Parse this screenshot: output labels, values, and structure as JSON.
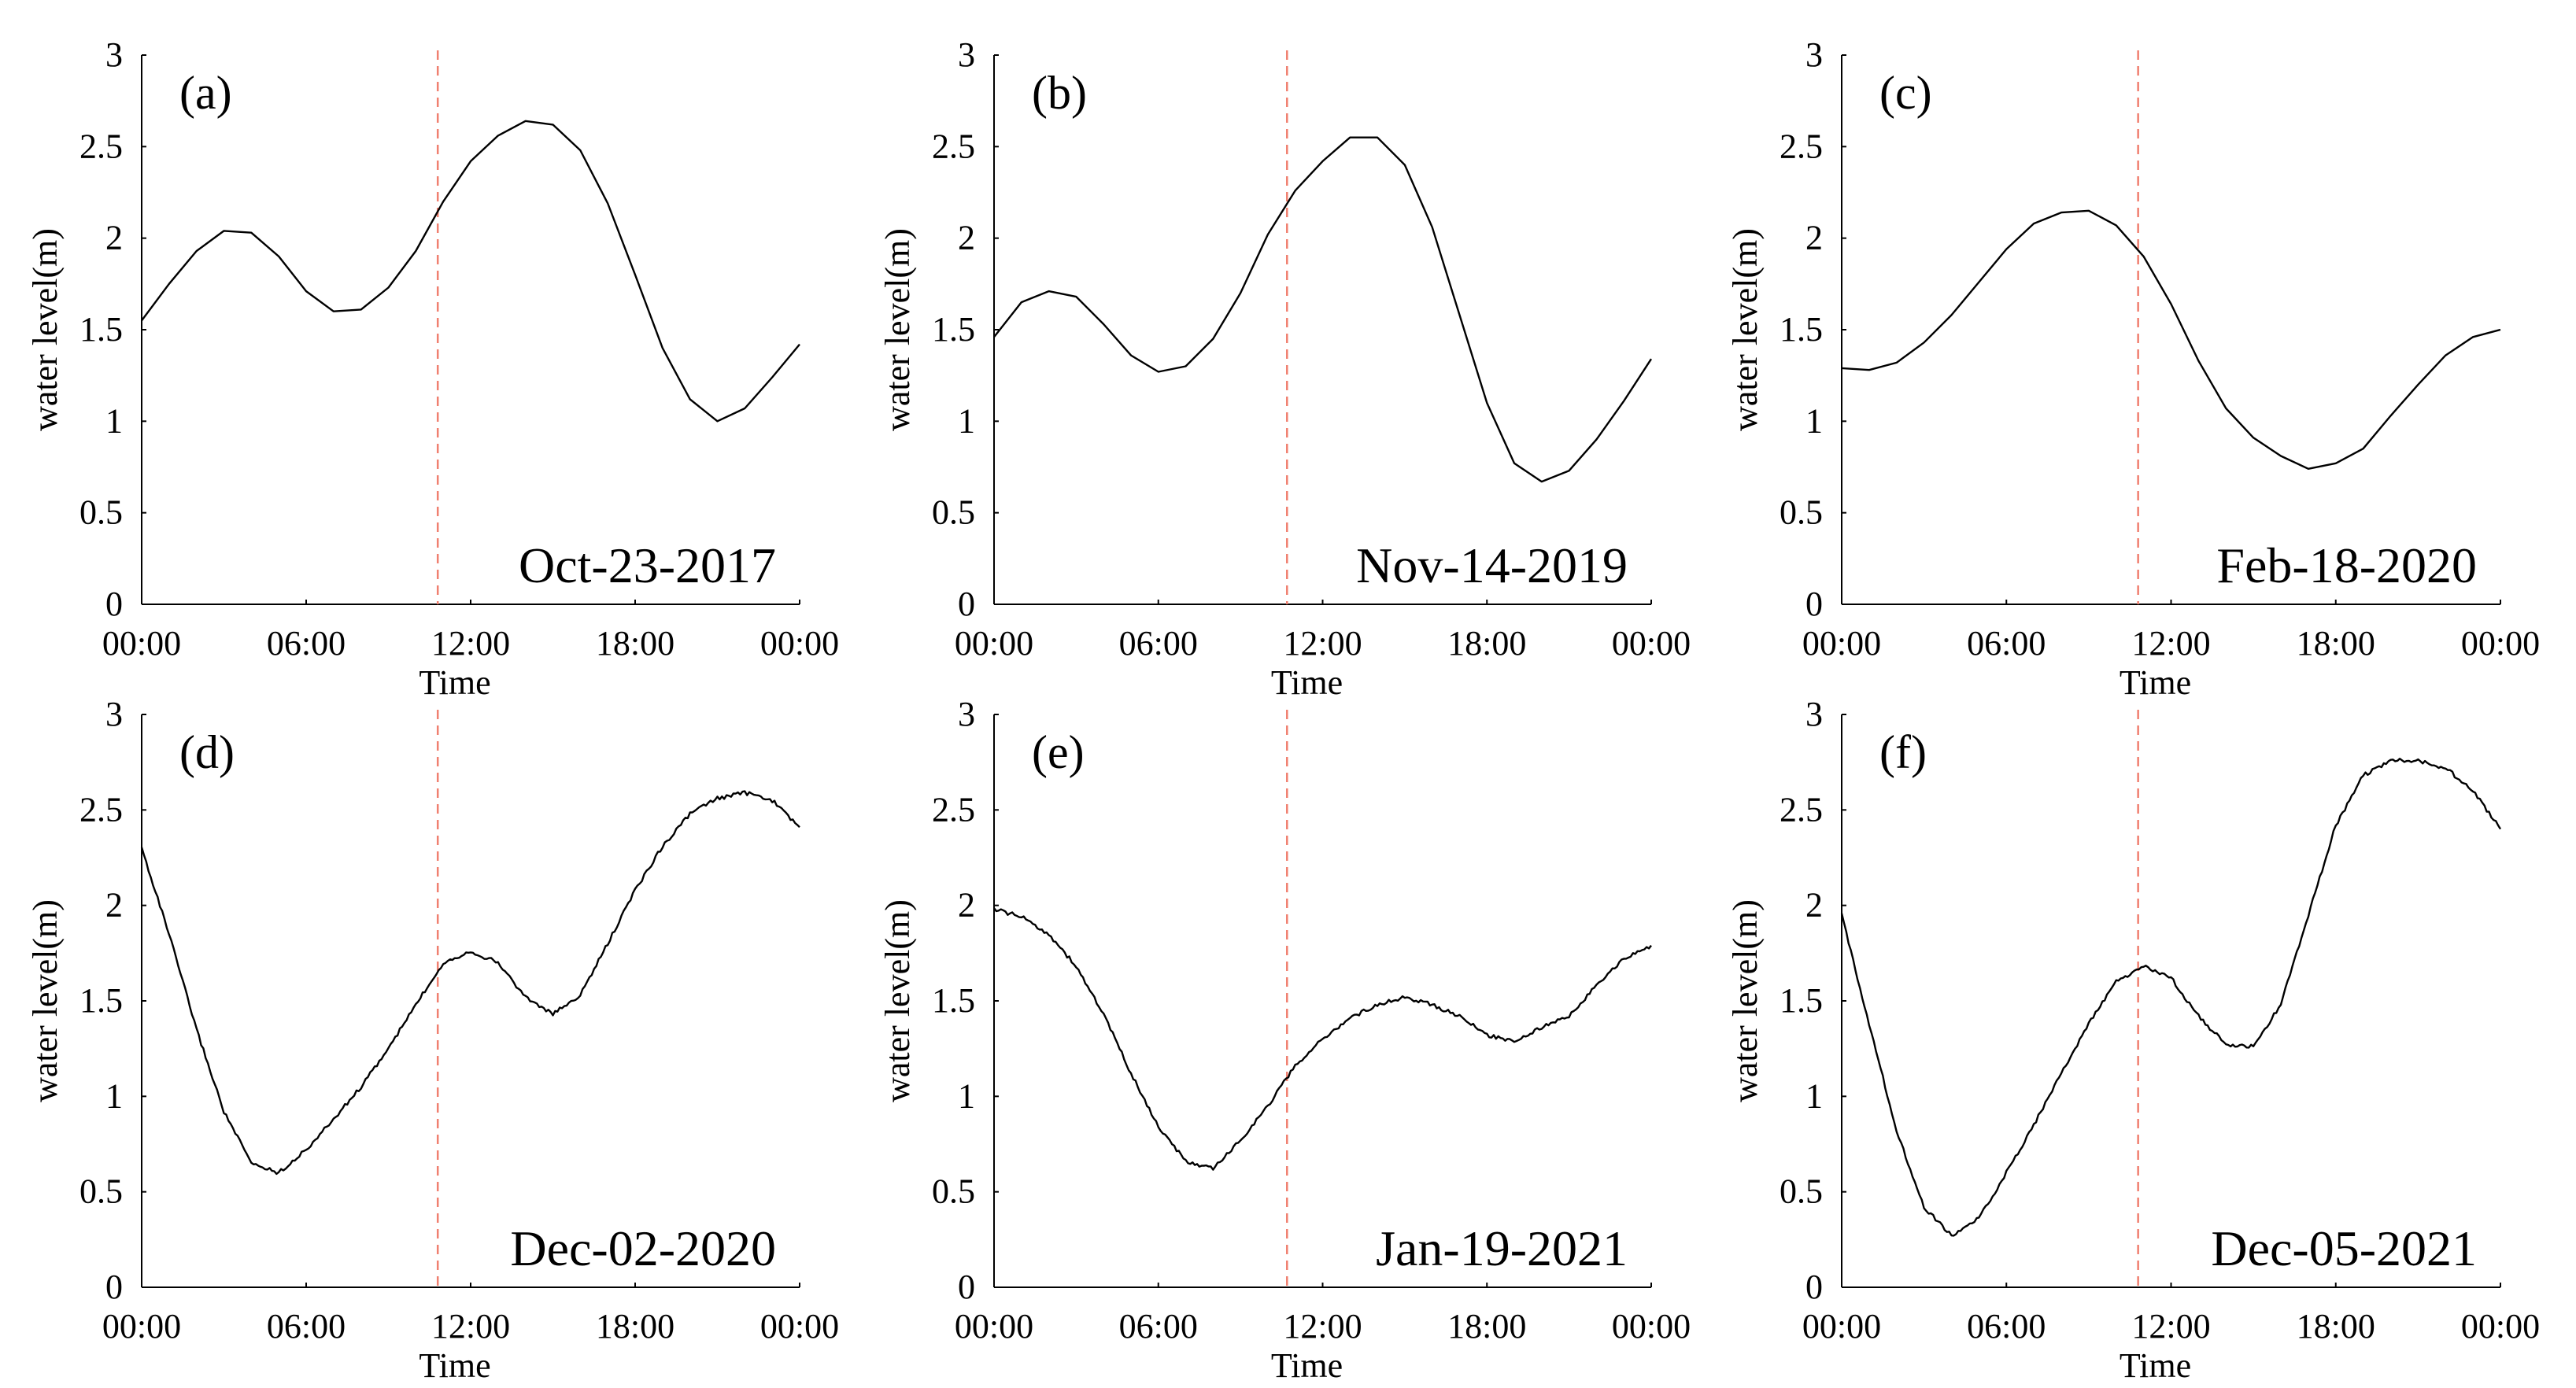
{
  "figure": {
    "colors": {
      "line": "#000000",
      "axis": "#000000",
      "marker": "#f08070",
      "background": "#ffffff"
    }
  },
  "chart_data": [
    {
      "type": "line",
      "panel_label": "(a)",
      "date_label": "Oct-23-2017",
      "xlabel": "Time",
      "ylabel": "water level(m)",
      "xlim": [
        0,
        24
      ],
      "ylim": [
        0,
        3
      ],
      "xticks": [
        0,
        6,
        12,
        18,
        24
      ],
      "xtick_labels": [
        "00:00",
        "06:00",
        "12:00",
        "18:00",
        "00:00"
      ],
      "yticks": [
        0,
        0.5,
        1,
        1.5,
        2,
        2.5,
        3
      ],
      "ytick_labels": [
        "0",
        "0.5",
        "1",
        "1.5",
        "2",
        "2.5",
        "3"
      ],
      "marker_hour": 10.8,
      "series": [
        {
          "name": "water level",
          "x": [
            0,
            1,
            2,
            3,
            4,
            5,
            6,
            7,
            8,
            9,
            10,
            11,
            12,
            13,
            14,
            15,
            16,
            17,
            18,
            19,
            20,
            21,
            22,
            23,
            24
          ],
          "values": [
            1.55,
            1.75,
            1.93,
            2.04,
            2.03,
            1.9,
            1.71,
            1.6,
            1.61,
            1.73,
            1.93,
            2.2,
            2.42,
            2.56,
            2.64,
            2.62,
            2.48,
            2.19,
            1.8,
            1.4,
            1.12,
            1.0,
            1.07,
            1.24,
            1.42
          ]
        }
      ]
    },
    {
      "type": "line",
      "panel_label": "(b)",
      "date_label": "Nov-14-2019",
      "xlabel": "Time",
      "ylabel": "water level(m)",
      "xlim": [
        0,
        24
      ],
      "ylim": [
        0,
        3
      ],
      "xticks": [
        0,
        6,
        12,
        18,
        24
      ],
      "xtick_labels": [
        "00:00",
        "06:00",
        "12:00",
        "18:00",
        "00:00"
      ],
      "yticks": [
        0,
        0.5,
        1,
        1.5,
        2,
        2.5,
        3
      ],
      "ytick_labels": [
        "0",
        "0.5",
        "1",
        "1.5",
        "2",
        "2.5",
        "3"
      ],
      "marker_hour": 10.7,
      "series": [
        {
          "name": "water level",
          "x": [
            0,
            1,
            2,
            3,
            4,
            5,
            6,
            7,
            8,
            9,
            10,
            11,
            12,
            13,
            14,
            15,
            16,
            17,
            18,
            19,
            20,
            21,
            22,
            23,
            24
          ],
          "values": [
            1.46,
            1.65,
            1.71,
            1.68,
            1.53,
            1.36,
            1.27,
            1.3,
            1.45,
            1.7,
            2.02,
            2.26,
            2.42,
            2.55,
            2.55,
            2.4,
            2.06,
            1.58,
            1.1,
            0.77,
            0.67,
            0.73,
            0.9,
            1.11,
            1.34
          ]
        }
      ]
    },
    {
      "type": "line",
      "panel_label": "(c)",
      "date_label": "Feb-18-2020",
      "xlabel": "Time",
      "ylabel": "water level(m)",
      "xlim": [
        0,
        24
      ],
      "ylim": [
        0,
        3
      ],
      "xticks": [
        0,
        6,
        12,
        18,
        24
      ],
      "xtick_labels": [
        "00:00",
        "06:00",
        "12:00",
        "18:00",
        "00:00"
      ],
      "yticks": [
        0,
        0.5,
        1,
        1.5,
        2,
        2.5,
        3
      ],
      "ytick_labels": [
        "0",
        "0.5",
        "1",
        "1.5",
        "2",
        "2.5",
        "3"
      ],
      "marker_hour": 10.8,
      "series": [
        {
          "name": "water level",
          "x": [
            0,
            1,
            2,
            3,
            4,
            5,
            6,
            7,
            8,
            9,
            10,
            11,
            12,
            13,
            14,
            15,
            16,
            17,
            18,
            19,
            20,
            21,
            22,
            23,
            24
          ],
          "values": [
            1.29,
            1.28,
            1.32,
            1.43,
            1.58,
            1.76,
            1.94,
            2.08,
            2.14,
            2.15,
            2.07,
            1.9,
            1.64,
            1.33,
            1.07,
            0.91,
            0.81,
            0.74,
            0.77,
            0.85,
            1.03,
            1.2,
            1.36,
            1.46,
            1.5
          ]
        }
      ]
    },
    {
      "type": "line",
      "panel_label": "(d)",
      "date_label": "Dec-02-2020",
      "xlabel": "Time",
      "ylabel": "water level(m)",
      "xlim": [
        0,
        24
      ],
      "ylim": [
        0,
        3
      ],
      "xticks": [
        0,
        6,
        12,
        18,
        24
      ],
      "xtick_labels": [
        "00:00",
        "06:00",
        "12:00",
        "18:00",
        "00:00"
      ],
      "yticks": [
        0,
        0.5,
        1,
        1.5,
        2,
        2.5,
        3
      ],
      "ytick_labels": [
        "0",
        "0.5",
        "1",
        "1.5",
        "2",
        "2.5",
        "3"
      ],
      "marker_hour": 10.8,
      "series": [
        {
          "name": "water level",
          "x": [
            0,
            1,
            2,
            3,
            4,
            5,
            6,
            7,
            8,
            9,
            10,
            11,
            12,
            13,
            14,
            15,
            16,
            17,
            18,
            19,
            20,
            21,
            22,
            23,
            24
          ],
          "values": [
            2.3,
            1.85,
            1.35,
            0.92,
            0.65,
            0.6,
            0.72,
            0.88,
            1.05,
            1.25,
            1.48,
            1.7,
            1.76,
            1.7,
            1.52,
            1.43,
            1.53,
            1.8,
            2.08,
            2.31,
            2.48,
            2.56,
            2.59,
            2.55,
            2.41
          ]
        }
      ]
    },
    {
      "type": "line",
      "panel_label": "(e)",
      "date_label": "Jan-19-2021",
      "xlabel": "Time",
      "ylabel": "water level(m)",
      "xlim": [
        0,
        24
      ],
      "ylim": [
        0,
        3
      ],
      "xticks": [
        0,
        6,
        12,
        18,
        24
      ],
      "xtick_labels": [
        "00:00",
        "06:00",
        "12:00",
        "18:00",
        "00:00"
      ],
      "yticks": [
        0,
        0.5,
        1,
        1.5,
        2,
        2.5,
        3
      ],
      "ytick_labels": [
        "0",
        "0.5",
        "1",
        "1.5",
        "2",
        "2.5",
        "3"
      ],
      "marker_hour": 10.7,
      "series": [
        {
          "name": "water level",
          "x": [
            0,
            1,
            2,
            3,
            4,
            5,
            6,
            7,
            8,
            9,
            10,
            11,
            12,
            13,
            14,
            15,
            16,
            17,
            18,
            19,
            20,
            21,
            22,
            23,
            24
          ],
          "values": [
            1.98,
            1.94,
            1.85,
            1.68,
            1.43,
            1.12,
            0.84,
            0.66,
            0.62,
            0.77,
            0.95,
            1.16,
            1.3,
            1.41,
            1.48,
            1.52,
            1.48,
            1.42,
            1.32,
            1.29,
            1.36,
            1.42,
            1.58,
            1.72,
            1.79
          ]
        }
      ]
    },
    {
      "type": "line",
      "panel_label": "(f)",
      "date_label": "Dec-05-2021",
      "xlabel": "Time",
      "ylabel": "water level(m)",
      "xlim": [
        0,
        24
      ],
      "ylim": [
        0,
        3
      ],
      "xticks": [
        0,
        6,
        12,
        18,
        24
      ],
      "xtick_labels": [
        "00:00",
        "06:00",
        "12:00",
        "18:00",
        "00:00"
      ],
      "yticks": [
        0,
        0.5,
        1,
        1.5,
        2,
        2.5,
        3
      ],
      "ytick_labels": [
        "0",
        "0.5",
        "1",
        "1.5",
        "2",
        "2.5",
        "3"
      ],
      "marker_hour": 10.8,
      "series": [
        {
          "name": "water level",
          "x": [
            0,
            1,
            2,
            3,
            4,
            5,
            6,
            7,
            8,
            9,
            10,
            11,
            12,
            13,
            14,
            15,
            16,
            17,
            18,
            19,
            20,
            21,
            22,
            23,
            24
          ],
          "values": [
            1.95,
            1.38,
            0.82,
            0.42,
            0.27,
            0.36,
            0.6,
            0.85,
            1.12,
            1.38,
            1.6,
            1.68,
            1.62,
            1.42,
            1.27,
            1.26,
            1.48,
            1.95,
            2.42,
            2.68,
            2.76,
            2.76,
            2.72,
            2.6,
            2.4
          ]
        }
      ]
    }
  ]
}
